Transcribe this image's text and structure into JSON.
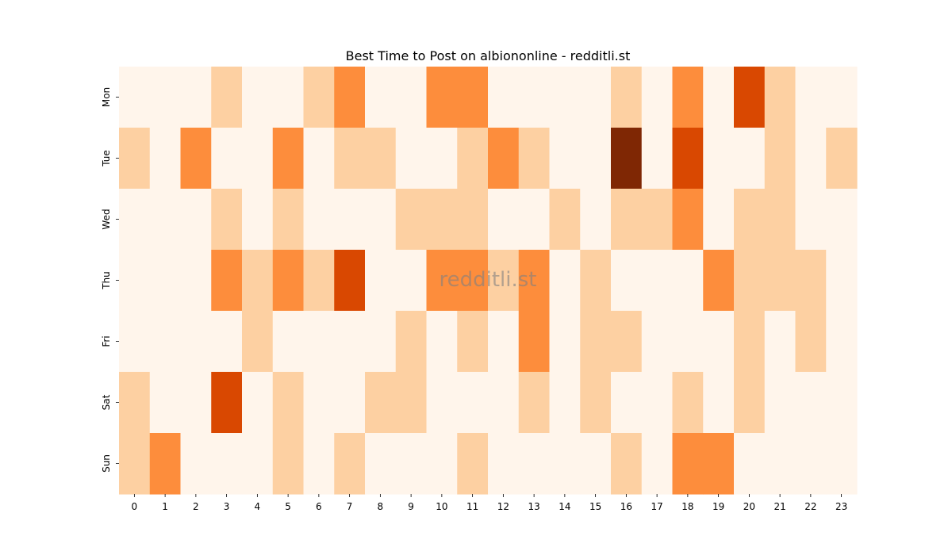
{
  "chart_data": {
    "type": "heatmap",
    "title": "Best Time to Post on albiononline - redditli.st",
    "xlabel": "",
    "ylabel": "",
    "x": [
      "0",
      "1",
      "2",
      "3",
      "4",
      "5",
      "6",
      "7",
      "8",
      "9",
      "10",
      "11",
      "12",
      "13",
      "14",
      "15",
      "16",
      "17",
      "18",
      "19",
      "20",
      "21",
      "22",
      "23"
    ],
    "y": [
      "Mon",
      "Tue",
      "Wed",
      "Thu",
      "Fri",
      "Sat",
      "Sun"
    ],
    "values": [
      [
        0,
        0,
        0,
        1,
        0,
        0,
        1,
        2,
        0,
        0,
        2,
        2,
        0,
        0,
        0,
        0,
        1,
        0,
        2,
        0,
        3,
        1,
        0,
        0
      ],
      [
        1,
        0,
        2,
        0,
        0,
        2,
        0,
        1,
        1,
        0,
        0,
        1,
        2,
        1,
        0,
        0,
        4,
        0,
        3,
        0,
        0,
        1,
        0,
        1
      ],
      [
        0,
        0,
        0,
        1,
        0,
        1,
        0,
        0,
        0,
        1,
        1,
        1,
        0,
        0,
        1,
        0,
        1,
        1,
        2,
        0,
        1,
        1,
        0,
        0
      ],
      [
        0,
        0,
        0,
        2,
        1,
        2,
        1,
        3,
        0,
        0,
        2,
        2,
        1,
        2,
        0,
        1,
        0,
        0,
        0,
        2,
        1,
        1,
        1,
        0
      ],
      [
        0,
        0,
        0,
        0,
        1,
        0,
        0,
        0,
        0,
        1,
        0,
        1,
        0,
        2,
        0,
        1,
        1,
        0,
        0,
        0,
        1,
        0,
        1,
        0
      ],
      [
        1,
        0,
        0,
        3,
        0,
        1,
        0,
        0,
        1,
        1,
        0,
        0,
        0,
        1,
        0,
        1,
        0,
        0,
        1,
        0,
        1,
        0,
        0,
        0
      ],
      [
        1,
        2,
        0,
        0,
        0,
        1,
        0,
        1,
        0,
        0,
        0,
        1,
        0,
        0,
        0,
        0,
        1,
        0,
        2,
        2,
        0,
        0,
        0,
        0
      ]
    ],
    "colorbar": false,
    "colorscale": [
      "#fff5eb",
      "#fdd0a2",
      "#fd8d3c",
      "#d94801",
      "#7f2704"
    ],
    "watermark": "redditli.st"
  }
}
